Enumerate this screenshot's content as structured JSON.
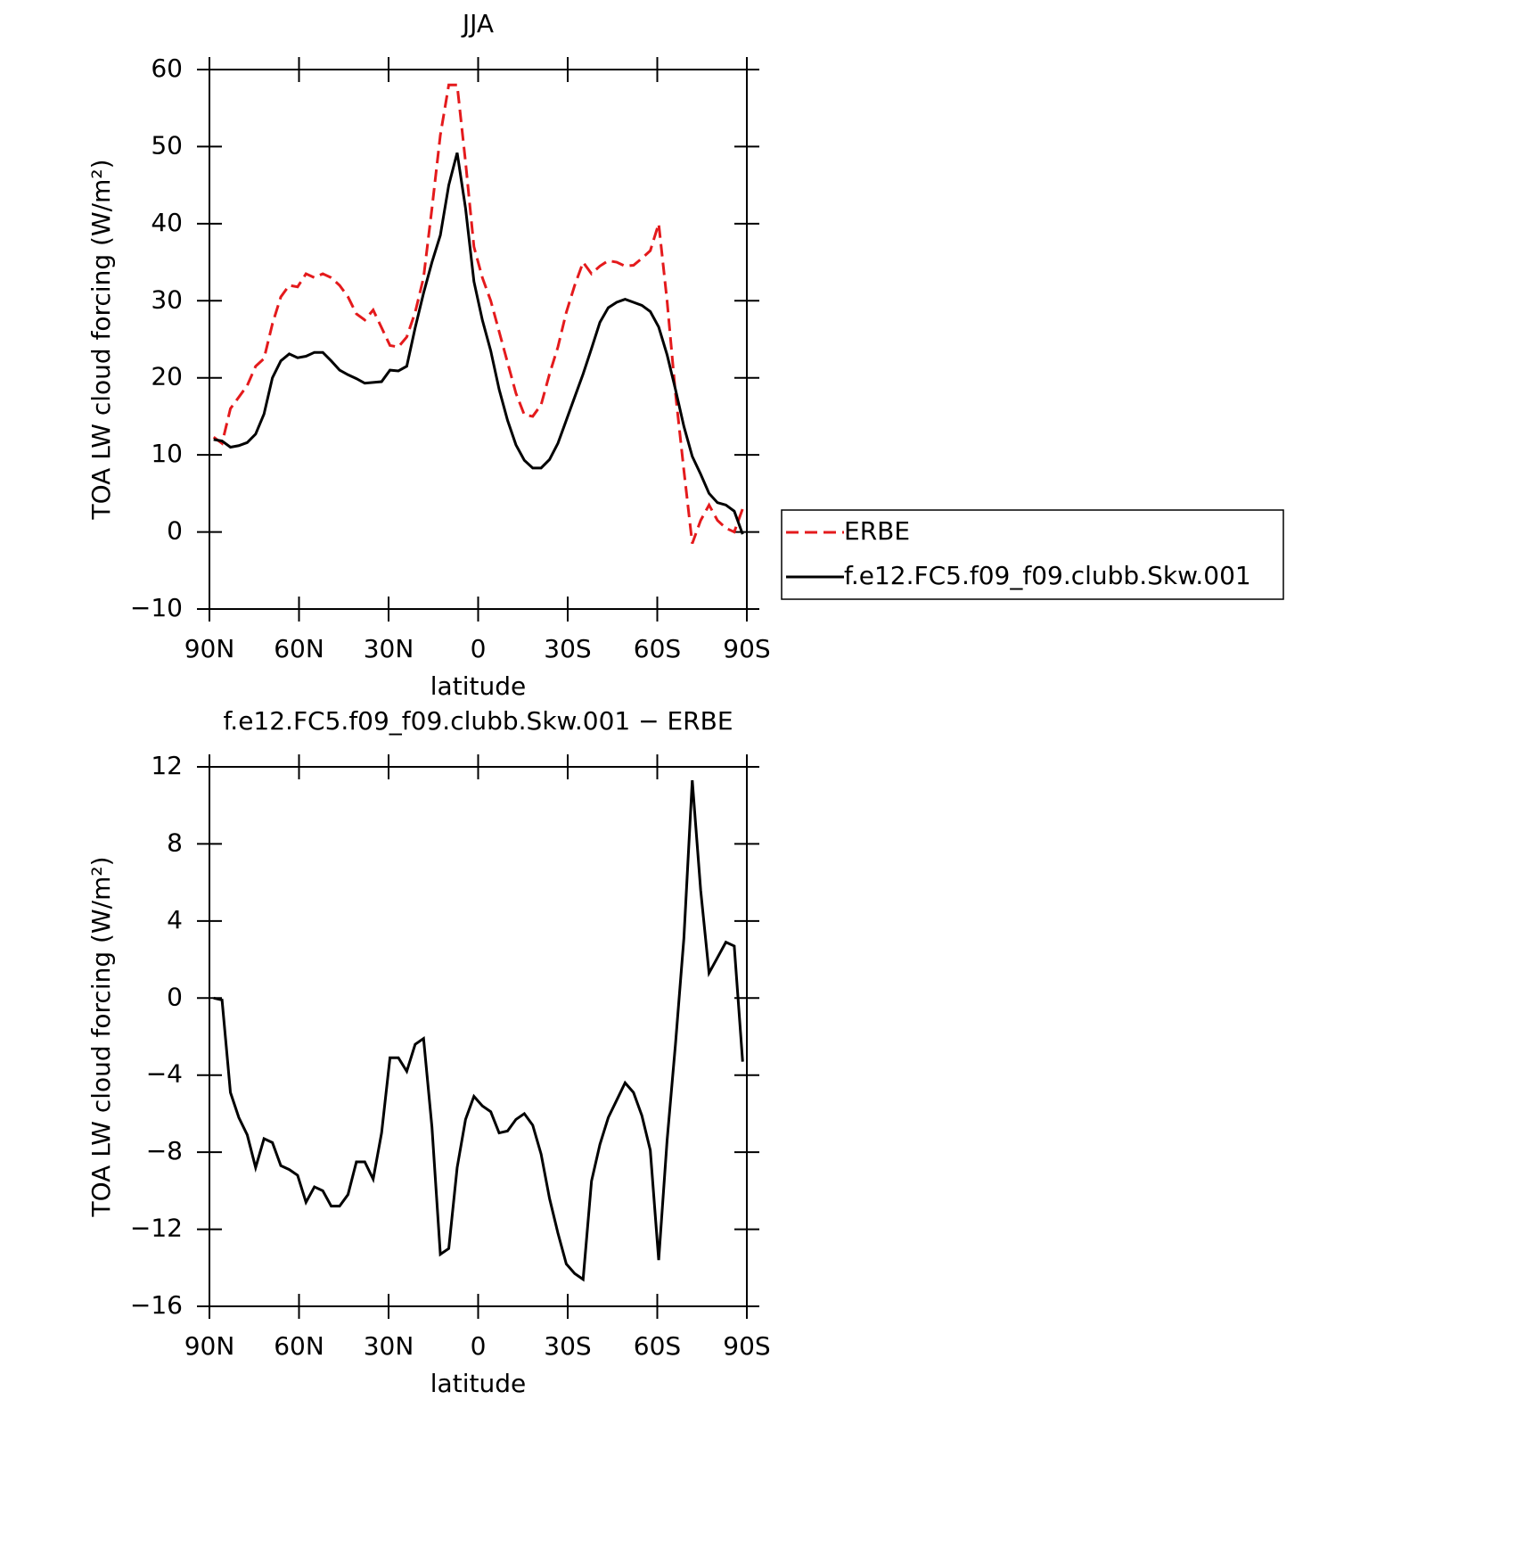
{
  "chart_data": [
    {
      "type": "line",
      "title": "JJA",
      "xlabel": "latitude",
      "ylabel": "TOA LW cloud forcing (W/m²)",
      "x": [
        88.59,
        85.78,
        82.97,
        80.16,
        77.34,
        74.53,
        71.72,
        68.91,
        66.09,
        63.28,
        60.47,
        57.66,
        54.84,
        52.03,
        49.22,
        46.41,
        43.59,
        40.78,
        37.97,
        35.16,
        32.34,
        29.53,
        26.72,
        23.91,
        21.09,
        18.28,
        15.47,
        12.66,
        9.84,
        7.03,
        4.22,
        1.41,
        -1.41,
        -4.22,
        -7.03,
        -9.84,
        -12.66,
        -15.47,
        -18.28,
        -21.09,
        -23.91,
        -26.72,
        -29.53,
        -32.34,
        -35.16,
        -37.97,
        -40.78,
        -43.59,
        -46.41,
        -49.22,
        -52.03,
        -54.84,
        -57.66,
        -60.47,
        -63.28,
        -66.09,
        -68.91,
        -71.72,
        -74.53,
        -77.34,
        -80.16,
        -82.97,
        -85.78,
        -88.59
      ],
      "xlim": [
        90,
        -90
      ],
      "xticks": [
        {
          "value": 90,
          "label": "90N"
        },
        {
          "value": 60,
          "label": "60N"
        },
        {
          "value": 30,
          "label": "30N"
        },
        0,
        {
          "value": -30,
          "label": "30S"
        },
        {
          "value": -60,
          "label": "60S"
        },
        {
          "value": -90,
          "label": "90S"
        }
      ],
      "ylim": [
        -10,
        60
      ],
      "yticks": [
        {
          "value": -10,
          "label": "−10"
        },
        0,
        10,
        20,
        30,
        40,
        50,
        60
      ],
      "legend": "right",
      "series": [
        {
          "name": "ERBE",
          "color": "#e41a1c",
          "style": "dashed",
          "values": [
            12.3,
            11.5,
            16,
            17.5,
            19,
            21.5,
            22.5,
            27,
            30.5,
            32,
            31.8,
            33.5,
            33,
            33.5,
            33,
            32,
            30.5,
            28.3,
            27.5,
            28.8,
            26.5,
            24.2,
            24,
            25.3,
            28.5,
            33,
            42,
            51.5,
            58,
            58,
            48,
            37,
            33,
            30,
            26,
            22,
            18,
            15.2,
            15,
            16.5,
            20.5,
            24,
            28.5,
            32,
            35,
            33.5,
            34.5,
            35.2,
            35,
            34.5,
            34.6,
            35.5,
            36.5,
            40,
            30,
            18,
            8,
            -1.5,
            1.5,
            3.5,
            1.5,
            0.5,
            0,
            3
          ]
        },
        {
          "name": "f.e12.FC5.f09_f09.clubb.Skw.001",
          "color": "#000000",
          "style": "solid",
          "values": [
            12,
            11.8,
            11,
            11.2,
            11.6,
            12.7,
            15.3,
            20,
            22.2,
            23.1,
            22.6,
            22.8,
            23.3,
            23.3,
            22.2,
            21,
            20.4,
            19.9,
            19.3,
            19.4,
            19.5,
            21,
            20.9,
            21.5,
            26.5,
            31,
            35,
            38.5,
            45,
            49.2,
            42,
            32.5,
            27.5,
            23.5,
            18.5,
            14.5,
            11.3,
            9.3,
            8.3,
            8.3,
            9.4,
            11.5,
            14.5,
            17.5,
            20.5,
            23.8,
            27.2,
            29.1,
            29.8,
            30.2,
            29.8,
            29.4,
            28.6,
            26.6,
            23,
            18.5,
            13.7,
            9.8,
            7.5,
            5,
            3.8,
            3.5,
            2.7,
            -0.3
          ]
        }
      ]
    },
    {
      "type": "line",
      "title": "f.e12.FC5.f09_f09.clubb.Skw.001 − ERBE",
      "xlabel": "latitude",
      "ylabel": "TOA LW cloud forcing (W/m²)",
      "x": [
        88.59,
        85.78,
        82.97,
        80.16,
        77.34,
        74.53,
        71.72,
        68.91,
        66.09,
        63.28,
        60.47,
        57.66,
        54.84,
        52.03,
        49.22,
        46.41,
        43.59,
        40.78,
        37.97,
        35.16,
        32.34,
        29.53,
        26.72,
        23.91,
        21.09,
        18.28,
        15.47,
        12.66,
        9.84,
        7.03,
        4.22,
        1.41,
        -1.41,
        -4.22,
        -7.03,
        -9.84,
        -12.66,
        -15.47,
        -18.28,
        -21.09,
        -23.91,
        -26.72,
        -29.53,
        -32.34,
        -35.16,
        -37.97,
        -40.78,
        -43.59,
        -46.41,
        -49.22,
        -52.03,
        -54.84,
        -57.66,
        -60.47,
        -63.28,
        -66.09,
        -68.91,
        -71.72,
        -74.53,
        -77.34,
        -80.16,
        -82.97,
        -85.78,
        -88.59
      ],
      "xlim": [
        90,
        -90
      ],
      "xticks": [
        {
          "value": 90,
          "label": "90N"
        },
        {
          "value": 60,
          "label": "60N"
        },
        {
          "value": 30,
          "label": "30N"
        },
        0,
        {
          "value": -30,
          "label": "30S"
        },
        {
          "value": -60,
          "label": "60S"
        },
        {
          "value": -90,
          "label": "90S"
        }
      ],
      "ylim": [
        -16,
        12
      ],
      "yticks": [
        {
          "value": -16,
          "label": "−16"
        },
        {
          "value": -12,
          "label": "−12"
        },
        {
          "value": -8,
          "label": "−8"
        },
        {
          "value": -4,
          "label": "−4"
        },
        0,
        4,
        8,
        12
      ],
      "series": [
        {
          "color": "#000000",
          "style": "solid",
          "values": [
            0.0,
            -0.1,
            -4.9,
            -6.2,
            -7.1,
            -8.8,
            -7.3,
            -7.5,
            -8.7,
            -8.9,
            -9.2,
            -10.6,
            -9.8,
            -10.0,
            -10.8,
            -10.8,
            -10.2,
            -8.5,
            -8.5,
            -9.4,
            -7.0,
            -3.1,
            -3.1,
            -3.8,
            -2.4,
            -2.1,
            -6.7,
            -13.3,
            -13.0,
            -8.8,
            -6.3,
            -5.1,
            -5.6,
            -5.9,
            -7.0,
            -6.9,
            -6.3,
            -6.0,
            -6.6,
            -8.1,
            -10.4,
            -12.2,
            -13.8,
            -14.3,
            -14.6,
            -9.5,
            -7.6,
            -6.2,
            -5.3,
            -4.4,
            -4.9,
            -6.1,
            -7.9,
            -13.6,
            -7.4,
            -2.4,
            3.1,
            11.3,
            5.6,
            1.3,
            2.1,
            2.9,
            2.7,
            -3.3
          ]
        }
      ]
    }
  ]
}
